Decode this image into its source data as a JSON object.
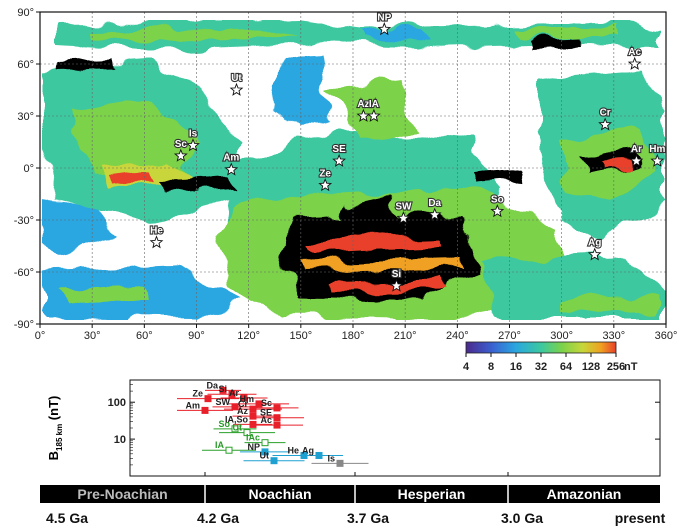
{
  "chart_data": [
    {
      "type": "heatmap",
      "title": "",
      "xlabel": "",
      "ylabel": "",
      "x_ticks": [
        "0°",
        "30°",
        "60°",
        "90°",
        "120°",
        "150°",
        "180°",
        "210°",
        "240°",
        "270°",
        "300°",
        "330°",
        "360°"
      ],
      "y_ticks": [
        "90°",
        "60°",
        "30°",
        "0°",
        "-30°",
        "-60°",
        "-90°"
      ],
      "xlim": [
        0,
        360
      ],
      "ylim": [
        -90,
        90
      ],
      "colorbar": {
        "ticks": [
          "4",
          "8",
          "16",
          "32",
          "64",
          "128",
          "256"
        ],
        "unit": "nT",
        "colors": [
          "#4b2a8c",
          "#3a5fd0",
          "#2aa6e0",
          "#3cc8a0",
          "#7cd24a",
          "#c8d63a",
          "#f0a020",
          "#e8402a"
        ]
      },
      "sites": [
        {
          "label": "NP",
          "lon": 198,
          "lat": 80
        },
        {
          "label": "Ac",
          "lon": 342,
          "lat": 60
        },
        {
          "label": "Ut",
          "lon": 113,
          "lat": 45
        },
        {
          "label": "Az",
          "lon": 186,
          "lat": 30
        },
        {
          "label": "IA",
          "lon": 192,
          "lat": 30
        },
        {
          "label": "Cr",
          "lon": 325,
          "lat": 25
        },
        {
          "label": "Is",
          "lon": 88,
          "lat": 13
        },
        {
          "label": "Sc",
          "lon": 81,
          "lat": 7
        },
        {
          "label": "SE",
          "lon": 172,
          "lat": 4
        },
        {
          "label": "Am",
          "lon": 110,
          "lat": -1
        },
        {
          "label": "Ar",
          "lon": 343,
          "lat": 4
        },
        {
          "label": "Hm",
          "lon": 355,
          "lat": 4
        },
        {
          "label": "Ze",
          "lon": 164,
          "lat": -10
        },
        {
          "label": "SW",
          "lon": 209,
          "lat": -29
        },
        {
          "label": "Da",
          "lon": 227,
          "lat": -27
        },
        {
          "label": "So",
          "lon": 263,
          "lat": -25
        },
        {
          "label": "He",
          "lon": 67,
          "lat": -43
        },
        {
          "label": "Ag",
          "lon": 319,
          "lat": -50
        },
        {
          "label": "Si",
          "lon": 205,
          "lat": -68
        }
      ]
    },
    {
      "type": "scatter",
      "title": "",
      "xlabel": "",
      "ylabel": "B185 km (nT)",
      "y_scale": "log",
      "y_ticks": [
        "100",
        "10"
      ],
      "ylim": [
        1,
        400
      ],
      "x_axis_ages": [
        "4.5 Ga",
        "4.2 Ga",
        "3.7 Ga",
        "3.0 Ga",
        "present"
      ],
      "periods": [
        "Pre-Noachian",
        "Noachian",
        "Hesperian",
        "Amazonian"
      ],
      "series": [
        {
          "color": "#e8202a",
          "points": [
            {
              "label": "Da",
              "age": 4.14,
              "value": 210
            },
            {
              "label": "Si",
              "age": 4.11,
              "value": 165
            },
            {
              "label": "Ze",
              "age": 4.19,
              "value": 125
            },
            {
              "label": "Ar",
              "age": 4.07,
              "value": 130
            },
            {
              "label": "Hm",
              "age": 4.02,
              "value": 90
            },
            {
              "label": "SW",
              "age": 4.1,
              "value": 75
            },
            {
              "label": "Cr",
              "age": 4.04,
              "value": 65
            },
            {
              "label": "Sc",
              "age": 3.96,
              "value": 70
            },
            {
              "label": "Am",
              "age": 4.2,
              "value": 60
            },
            {
              "label": "Az",
              "age": 4.04,
              "value": 42
            },
            {
              "label": "SE",
              "age": 3.96,
              "value": 38
            },
            {
              "label": "IA,So",
              "age": 4.04,
              "value": 25
            },
            {
              "label": "Ac",
              "age": 3.96,
              "value": 24
            }
          ]
        },
        {
          "color": "#2aa02a",
          "points": [
            {
              "label": "So",
              "age": 4.1,
              "value": 19
            },
            {
              "label": "Ut",
              "age": 4.06,
              "value": 15
            },
            {
              "label": "IAc",
              "age": 4.0,
              "value": 8
            },
            {
              "label": "IA",
              "age": 4.12,
              "value": 5
            }
          ]
        },
        {
          "color": "#1ea0d0",
          "points": [
            {
              "label": "NP",
              "age": 4.0,
              "value": 4.5
            },
            {
              "label": "He",
              "age": 3.87,
              "value": 3.6
            },
            {
              "label": "Ag",
              "age": 3.82,
              "value": 3.6
            },
            {
              "label": "Ut",
              "age": 3.97,
              "value": 2.6
            }
          ]
        },
        {
          "color": "#888888",
          "points": [
            {
              "label": "Is",
              "age": 3.75,
              "value": 2.2
            }
          ]
        }
      ]
    }
  ]
}
